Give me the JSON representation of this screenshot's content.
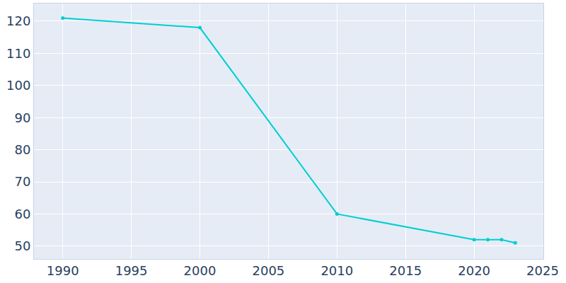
{
  "chart_data": {
    "type": "line",
    "x": [
      1990,
      2000,
      2010,
      2020,
      2021,
      2022,
      2023
    ],
    "values": [
      121,
      118,
      60,
      52,
      52,
      52,
      51
    ],
    "color": "#00ced1",
    "marker": "circle",
    "xlim": [
      1987.9,
      2025.05
    ],
    "ylim": [
      46,
      125.5
    ],
    "xticks": [
      1990,
      1995,
      2000,
      2005,
      2010,
      2015,
      2020,
      2025
    ],
    "yticks": [
      50,
      60,
      70,
      80,
      90,
      100,
      110,
      120
    ],
    "grid": true
  }
}
